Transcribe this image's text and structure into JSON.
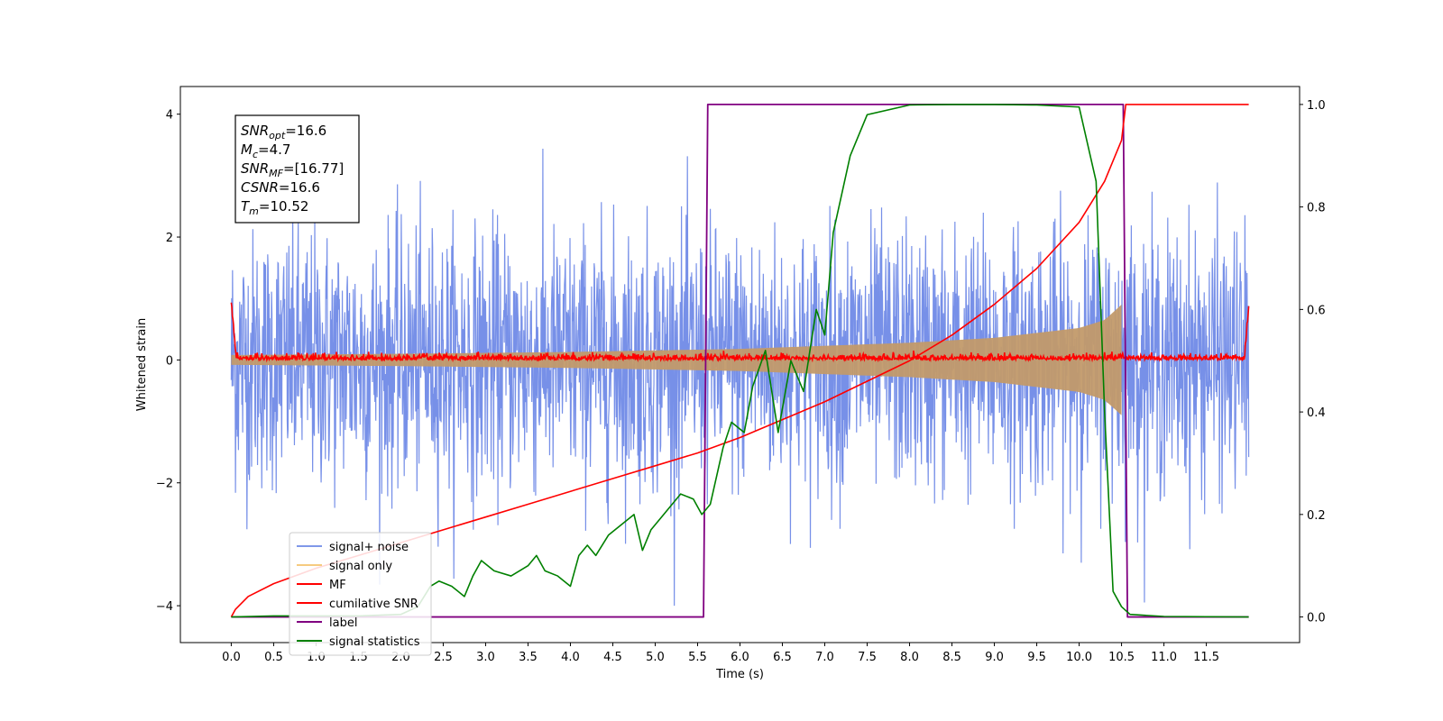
{
  "chart_data": {
    "type": "line",
    "xlabel": "Time (s)",
    "ylabel": "Whitened strain",
    "xlim": [
      -0.6,
      12.6
    ],
    "ylim": [
      -4.6,
      4.45
    ],
    "ylim_right": [
      -0.05,
      1.035
    ],
    "x_ticks": [
      "0.0",
      "0.5",
      "1.0",
      "1.5",
      "2.0",
      "2.5",
      "3.0",
      "3.5",
      "4.0",
      "4.5",
      "5.0",
      "5.5",
      "6.0",
      "6.5",
      "7.0",
      "7.5",
      "8.0",
      "8.5",
      "9.0",
      "9.5",
      "10.0",
      "10.5",
      "11.0",
      "11.5"
    ],
    "y_ticks_left": [
      "−4",
      "−2",
      "0",
      "2",
      "4"
    ],
    "y_ticks_right": [
      "0.0",
      "0.2",
      "0.4",
      "0.6",
      "0.8",
      "1.0"
    ],
    "legend_location": "lower-left",
    "grid": false,
    "annotation": [
      {
        "sym": "SNR",
        "sub": "opt",
        "val": "=16.6"
      },
      {
        "sym": "M",
        "sub": "c",
        "val": "=4.7"
      },
      {
        "sym": "SNR",
        "sub": "MF",
        "val": "=[16.77]"
      },
      {
        "sym": "CSNR",
        "sub": "",
        "val": "=16.6"
      },
      {
        "sym": "T",
        "sub": "m",
        "val": "=10.52"
      }
    ],
    "series": [
      {
        "name": "signal+ noise",
        "color": "#6b87e6",
        "axis": "left",
        "noise_amplitude_approx": 4.0,
        "x_range": [
          0,
          12
        ]
      },
      {
        "name": "signal only",
        "color": "#f5c26b",
        "axis": "left",
        "envelope_x": [
          0,
          2,
          4,
          6,
          8,
          9,
          10,
          10.3,
          10.5
        ],
        "envelope_y": [
          0.08,
          0.1,
          0.13,
          0.18,
          0.28,
          0.36,
          0.52,
          0.65,
          0.9
        ]
      },
      {
        "name": "MF",
        "color": "#ff0000",
        "axis": "left",
        "x_range": [
          0,
          12
        ],
        "baseline_approx": 0.02
      },
      {
        "name": "cumilative SNR",
        "color": "#ff0000",
        "axis": "right",
        "x": [
          0,
          0.05,
          0.2,
          0.5,
          1.0,
          1.5,
          2.0,
          2.5,
          3.0,
          3.5,
          4.0,
          4.5,
          5.0,
          5.5,
          6.0,
          6.5,
          7.0,
          7.5,
          8.0,
          8.5,
          9.0,
          9.5,
          10.0,
          10.3,
          10.5,
          10.55,
          12.0
        ],
        "y": [
          0.0,
          0.015,
          0.04,
          0.065,
          0.095,
          0.12,
          0.145,
          0.17,
          0.195,
          0.22,
          0.245,
          0.27,
          0.295,
          0.32,
          0.35,
          0.385,
          0.42,
          0.46,
          0.5,
          0.55,
          0.61,
          0.68,
          0.77,
          0.85,
          0.93,
          1.0,
          1.0
        ]
      },
      {
        "name": "label",
        "color": "#800080",
        "axis": "right",
        "x": [
          0,
          5.57,
          5.62,
          10.52,
          10.57,
          12.0
        ],
        "y": [
          0.0,
          0.0,
          1.0,
          1.0,
          0.0,
          0.0
        ]
      },
      {
        "name": "signal statistics",
        "color": "#008000",
        "axis": "right",
        "x": [
          0,
          0.5,
          1.0,
          1.5,
          2.0,
          2.2,
          2.35,
          2.45,
          2.6,
          2.75,
          2.85,
          2.95,
          3.1,
          3.3,
          3.5,
          3.6,
          3.7,
          3.85,
          4.0,
          4.1,
          4.2,
          4.3,
          4.45,
          4.6,
          4.75,
          4.85,
          4.95,
          5.1,
          5.3,
          5.45,
          5.55,
          5.65,
          5.8,
          5.9,
          6.05,
          6.15,
          6.3,
          6.45,
          6.6,
          6.75,
          6.9,
          7.0,
          7.1,
          7.3,
          7.5,
          8.0,
          8.5,
          9.0,
          9.5,
          10.0,
          10.2,
          10.3,
          10.4,
          10.5,
          10.6,
          11.0,
          12.0
        ],
        "y": [
          0.0,
          0.002,
          0.002,
          0.002,
          0.005,
          0.02,
          0.06,
          0.07,
          0.06,
          0.04,
          0.08,
          0.11,
          0.09,
          0.08,
          0.1,
          0.12,
          0.09,
          0.08,
          0.06,
          0.12,
          0.14,
          0.12,
          0.16,
          0.18,
          0.2,
          0.13,
          0.17,
          0.2,
          0.24,
          0.23,
          0.2,
          0.22,
          0.33,
          0.38,
          0.36,
          0.45,
          0.52,
          0.36,
          0.5,
          0.44,
          0.6,
          0.55,
          0.75,
          0.9,
          0.98,
          0.999,
          1.0,
          1.0,
          0.999,
          0.995,
          0.85,
          0.4,
          0.05,
          0.02,
          0.005,
          0.001,
          0.0
        ]
      }
    ]
  }
}
